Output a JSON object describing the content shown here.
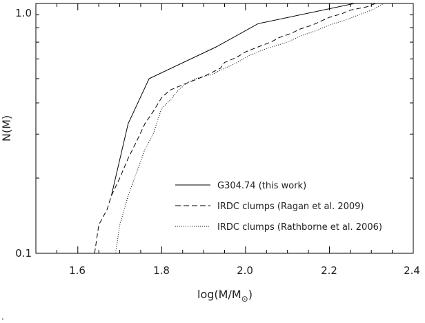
{
  "chart_data": {
    "type": "line",
    "xlabel": "log(M/M",
    "xlabel_sub": "⊙",
    "xlabel_close": ")",
    "ylabel": "N(M)",
    "xlim": [
      1.5,
      2.4
    ],
    "ylim": [
      0.1,
      1.0
    ],
    "y_scale": "log",
    "x_ticks": [
      "1.6",
      "1.8",
      "2.0",
      "2.2",
      "2.4"
    ],
    "y_ticks": [
      "0.1",
      "1.0"
    ],
    "legend_position": "lower-right",
    "series": [
      {
        "name": "G304.74 (this work)",
        "dash": "solid",
        "x": [
          1.68,
          1.72,
          1.77,
          1.93,
          2.03,
          2.26
        ],
        "y": [
          0.17,
          0.33,
          0.5,
          0.67,
          0.83,
          1.0
        ]
      },
      {
        "name": "IRDC clumps (Ragan et al. 2009)",
        "dash": "dashed",
        "x": [
          1.64,
          1.65,
          1.67,
          1.68,
          1.7,
          1.72,
          1.74,
          1.76,
          1.78,
          1.8,
          1.82,
          1.86,
          1.9,
          1.94,
          1.95,
          1.98,
          2.0,
          2.03,
          2.06,
          2.08,
          2.11,
          2.13,
          2.16,
          2.18,
          2.2,
          2.23,
          2.25,
          2.29,
          2.31
        ],
        "y": [
          0.1,
          0.13,
          0.15,
          0.17,
          0.2,
          0.24,
          0.28,
          0.33,
          0.37,
          0.42,
          0.45,
          0.48,
          0.51,
          0.55,
          0.58,
          0.61,
          0.64,
          0.67,
          0.7,
          0.73,
          0.76,
          0.79,
          0.82,
          0.85,
          0.88,
          0.91,
          0.94,
          0.97,
          1.0
        ]
      },
      {
        "name": "IRDC clumps (Rathborne et al. 2006)",
        "dash": "dotted",
        "x": [
          1.69,
          1.7,
          1.72,
          1.74,
          1.76,
          1.78,
          1.79,
          1.8,
          1.82,
          1.84,
          1.86,
          1.88,
          1.92,
          1.95,
          1.98,
          2.01,
          2.05,
          2.1,
          2.13,
          2.17,
          2.2,
          2.24,
          2.27,
          2.3,
          2.33
        ],
        "y": [
          0.1,
          0.13,
          0.17,
          0.21,
          0.26,
          0.3,
          0.34,
          0.38,
          0.41,
          0.45,
          0.48,
          0.5,
          0.52,
          0.55,
          0.58,
          0.62,
          0.66,
          0.7,
          0.74,
          0.78,
          0.82,
          0.86,
          0.9,
          0.94,
          1.0
        ]
      }
    ]
  },
  "stray_mark": "."
}
